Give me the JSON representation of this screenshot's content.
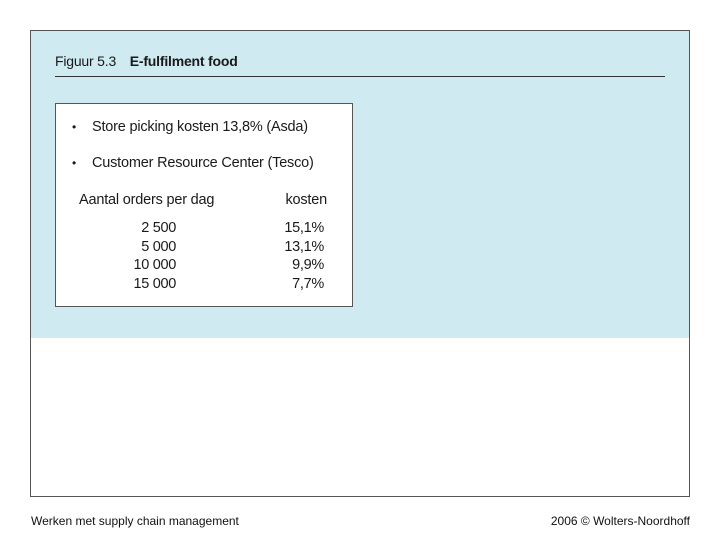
{
  "figure": {
    "number": "Figuur 5.3",
    "title": "E-fulfilment food"
  },
  "bullets": [
    {
      "icon": "bullet-dot",
      "text": "Store picking kosten 13,8% (Asda)"
    },
    {
      "icon": "bullet-dot",
      "text": "Customer Resource Center (Tesco)"
    }
  ],
  "bullet_symbol": "•",
  "table": {
    "headers": {
      "orders": "Aantal orders per dag",
      "kosten": "kosten"
    },
    "rows": [
      {
        "orders": "2 500",
        "kosten": "15,1%"
      },
      {
        "orders": "5 000",
        "kosten": "13,1%"
      },
      {
        "orders": "10 000",
        "kosten": "9,9%"
      },
      {
        "orders": "15 000",
        "kosten": "7,7%"
      }
    ]
  },
  "footer": {
    "left": "Werken met supply chain management",
    "right": "2006 © Wolters-Noordhoff"
  },
  "colors": {
    "panel_background": "#cfeaf0",
    "frame_border": "#555555"
  }
}
